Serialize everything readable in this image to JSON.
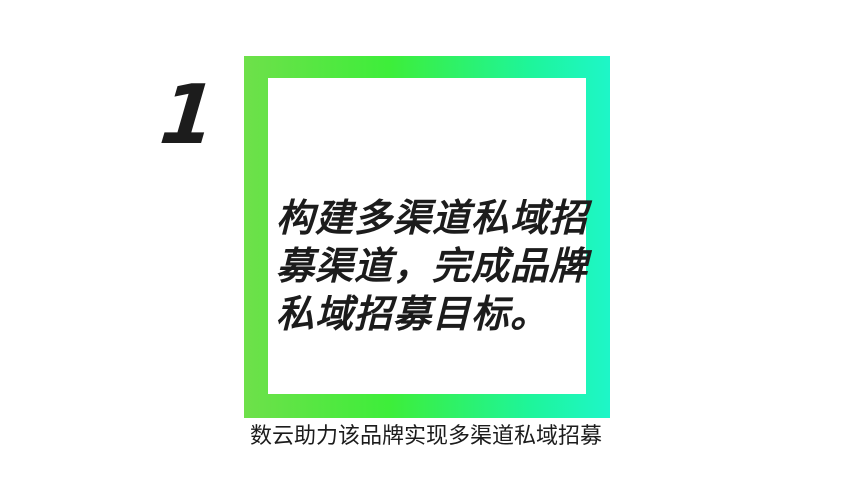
{
  "card": {
    "number": "1",
    "lines": [
      "构建多渠道私域招",
      "募渠道，完成品牌",
      "私域招募目标。"
    ]
  },
  "caption": "数云助力该品牌实现多渠道私域招募",
  "colors": {
    "frame_gradient": [
      "#6ee04a",
      "#3dee3a",
      "#1ef59a",
      "#1ef6c8"
    ],
    "text": "#1c1c1c",
    "background": "#ffffff"
  }
}
